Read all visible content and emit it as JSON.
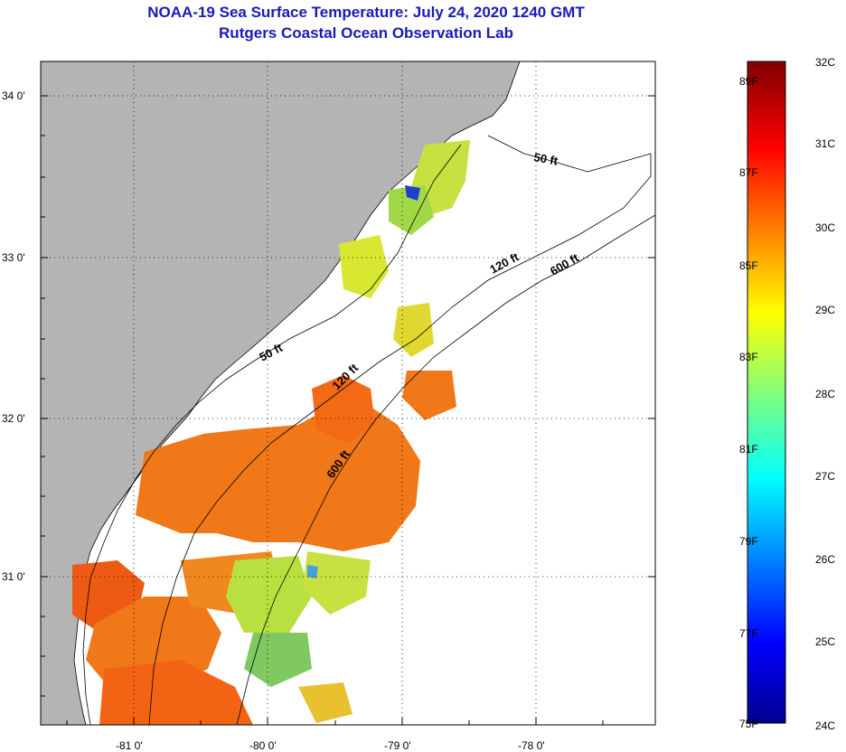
{
  "header": {
    "title_line1": "NOAA-19 Sea Surface Temperature:  July 24, 2020 1240 GMT",
    "title_line2": "Rutgers Coastal Ocean Observation Lab"
  },
  "map": {
    "lat_labels": [
      "34 0'",
      "33 0'",
      "32 0'",
      "31 0'"
    ],
    "lon_labels": [
      "-81 0'",
      "-80 0'",
      "-79 0'",
      "-78 0'"
    ],
    "contour_labels": [
      "50 ft",
      "120 ft",
      "600 ft",
      "50 ft",
      "120 ft",
      "600 ft"
    ],
    "colors": {
      "land": "#b4b4b4",
      "ocean_no_data": "#ffffff",
      "sst_warm": "#f07818",
      "sst_mid": "#d8e830",
      "sst_cool": "#40c060"
    }
  },
  "colorbar": {
    "fahrenheit_labels": [
      "89F",
      "87F",
      "85F",
      "83F",
      "81F",
      "79F",
      "77F",
      "75F"
    ],
    "celsius_labels": [
      "32C",
      "31C",
      "30C",
      "29C",
      "28C",
      "27C",
      "26C",
      "25C",
      "24C"
    ],
    "range_c": [
      24,
      32
    ],
    "range_f": [
      75,
      89.6
    ]
  }
}
